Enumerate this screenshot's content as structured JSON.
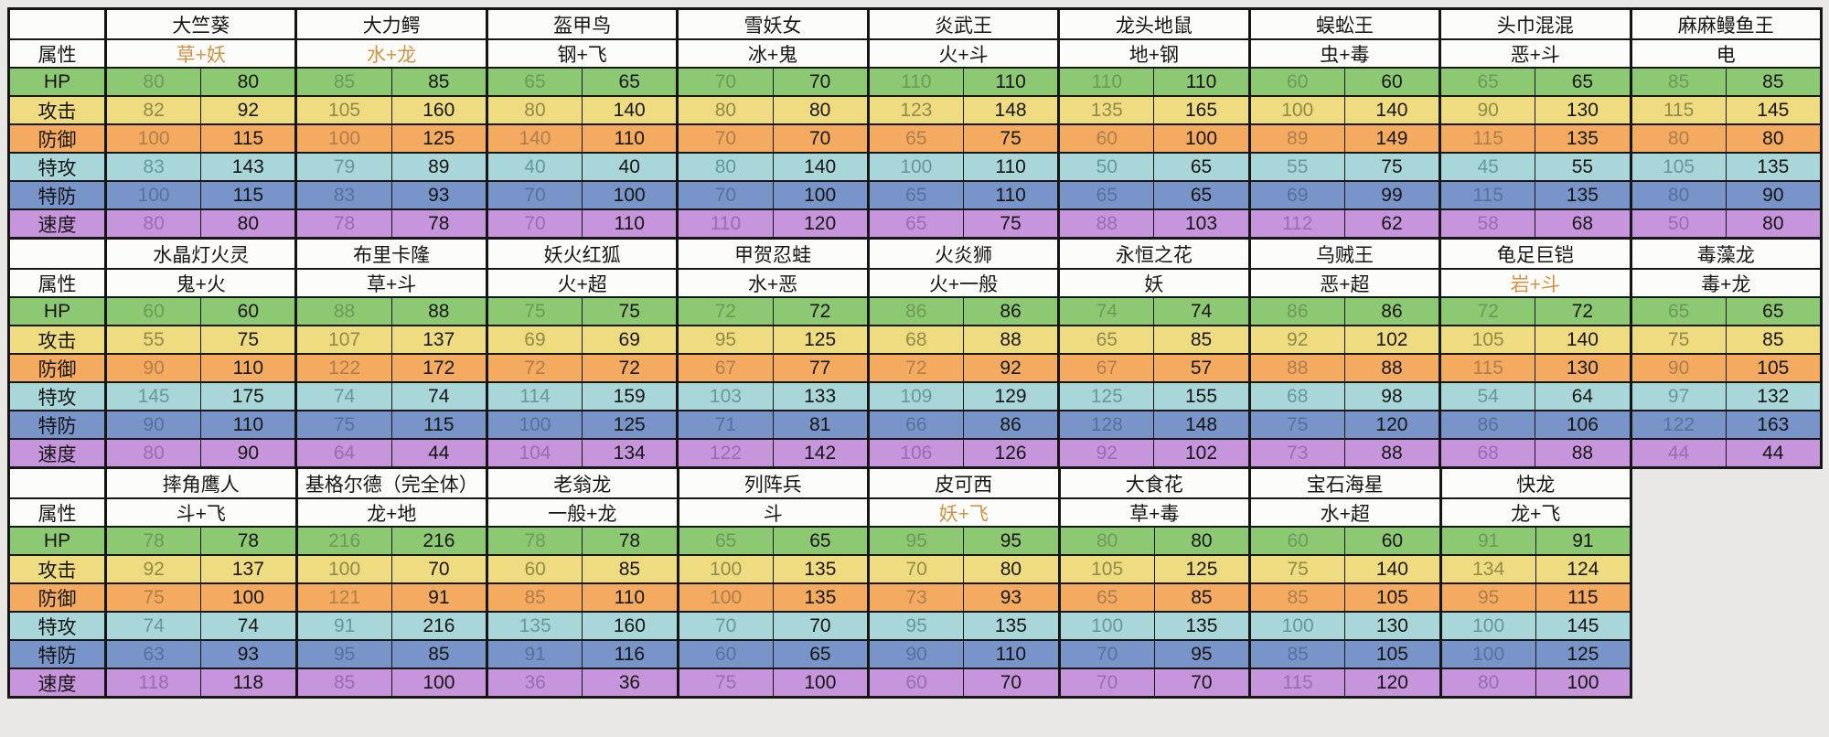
{
  "table": {
    "attribute_label": "属性",
    "stat_order": [
      "hp",
      "atk",
      "def",
      "spa",
      "spd",
      "spe"
    ],
    "stat_labels": {
      "hp": "HP",
      "atk": "攻击",
      "def": "防御",
      "spa": "特攻",
      "spd": "特防",
      "spe": "速度"
    },
    "colors": {
      "page_background": "#e9e8e5",
      "table_background": "#fcfcfa",
      "border": "#161616",
      "text": "#161616",
      "type_highlight": "#d09245",
      "rows": {
        "hp": {
          "band": "#8dc873",
          "muted": "#6e9a58"
        },
        "atk": {
          "band": "#f0dc80",
          "muted": "#8f8b48"
        },
        "def": {
          "band": "#f5ab5f",
          "muted": "#ae7e4d"
        },
        "spa": {
          "band": "#a9d6d8",
          "muted": "#649a9e"
        },
        "spd": {
          "band": "#7894c9",
          "muted": "#56719f"
        },
        "spe": {
          "band": "#c795dc",
          "muted": "#996cb4"
        }
      }
    },
    "blocks": [
      {
        "pokemon": [
          {
            "name": "大竺葵",
            "type": "草+妖",
            "type_highlight": true,
            "stats": {
              "hp": [
                80,
                80
              ],
              "atk": [
                82,
                92
              ],
              "def": [
                100,
                115
              ],
              "spa": [
                83,
                143
              ],
              "spd": [
                100,
                115
              ],
              "spe": [
                80,
                80
              ]
            }
          },
          {
            "name": "大力鳄",
            "type": "水+龙",
            "type_highlight": true,
            "stats": {
              "hp": [
                85,
                85
              ],
              "atk": [
                105,
                160
              ],
              "def": [
                100,
                125
              ],
              "spa": [
                79,
                89
              ],
              "spd": [
                83,
                93
              ],
              "spe": [
                78,
                78
              ]
            }
          },
          {
            "name": "盔甲鸟",
            "type": "钢+飞",
            "type_highlight": false,
            "stats": {
              "hp": [
                65,
                65
              ],
              "atk": [
                80,
                140
              ],
              "def": [
                140,
                110
              ],
              "spa": [
                40,
                40
              ],
              "spd": [
                70,
                100
              ],
              "spe": [
                70,
                110
              ]
            }
          },
          {
            "name": "雪妖女",
            "type": "冰+鬼",
            "type_highlight": false,
            "stats": {
              "hp": [
                70,
                70
              ],
              "atk": [
                80,
                80
              ],
              "def": [
                70,
                70
              ],
              "spa": [
                80,
                140
              ],
              "spd": [
                70,
                100
              ],
              "spe": [
                110,
                120
              ]
            }
          },
          {
            "name": "炎武王",
            "type": "火+斗",
            "type_highlight": false,
            "stats": {
              "hp": [
                110,
                110
              ],
              "atk": [
                123,
                148
              ],
              "def": [
                65,
                75
              ],
              "spa": [
                100,
                110
              ],
              "spd": [
                65,
                110
              ],
              "spe": [
                65,
                75
              ]
            }
          },
          {
            "name": "龙头地鼠",
            "type": "地+钢",
            "type_highlight": false,
            "stats": {
              "hp": [
                110,
                110
              ],
              "atk": [
                135,
                165
              ],
              "def": [
                60,
                100
              ],
              "spa": [
                50,
                65
              ],
              "spd": [
                65,
                65
              ],
              "spe": [
                88,
                103
              ]
            }
          },
          {
            "name": "蜈蚣王",
            "type": "虫+毒",
            "type_highlight": false,
            "stats": {
              "hp": [
                60,
                60
              ],
              "atk": [
                100,
                140
              ],
              "def": [
                89,
                149
              ],
              "spa": [
                55,
                75
              ],
              "spd": [
                69,
                99
              ],
              "spe": [
                112,
                62
              ]
            }
          },
          {
            "name": "头巾混混",
            "type": "恶+斗",
            "type_highlight": false,
            "stats": {
              "hp": [
                65,
                65
              ],
              "atk": [
                90,
                130
              ],
              "def": [
                115,
                135
              ],
              "spa": [
                45,
                55
              ],
              "spd": [
                115,
                135
              ],
              "spe": [
                58,
                68
              ]
            }
          },
          {
            "name": "麻麻鳗鱼王",
            "type": "电",
            "type_highlight": false,
            "stats": {
              "hp": [
                85,
                85
              ],
              "atk": [
                115,
                145
              ],
              "def": [
                80,
                80
              ],
              "spa": [
                105,
                135
              ],
              "spd": [
                80,
                90
              ],
              "spe": [
                50,
                80
              ]
            }
          }
        ]
      },
      {
        "pokemon": [
          {
            "name": "水晶灯火灵",
            "type": "鬼+火",
            "type_highlight": false,
            "stats": {
              "hp": [
                60,
                60
              ],
              "atk": [
                55,
                75
              ],
              "def": [
                90,
                110
              ],
              "spa": [
                145,
                175
              ],
              "spd": [
                90,
                110
              ],
              "spe": [
                80,
                90
              ]
            }
          },
          {
            "name": "布里卡隆",
            "type": "草+斗",
            "type_highlight": false,
            "stats": {
              "hp": [
                88,
                88
              ],
              "atk": [
                107,
                137
              ],
              "def": [
                122,
                172
              ],
              "spa": [
                74,
                74
              ],
              "spd": [
                75,
                115
              ],
              "spe": [
                64,
                44
              ]
            }
          },
          {
            "name": "妖火红狐",
            "type": "火+超",
            "type_highlight": false,
            "stats": {
              "hp": [
                75,
                75
              ],
              "atk": [
                69,
                69
              ],
              "def": [
                72,
                72
              ],
              "spa": [
                114,
                159
              ],
              "spd": [
                100,
                125
              ],
              "spe": [
                104,
                134
              ]
            }
          },
          {
            "name": "甲贺忍蛙",
            "type": "水+恶",
            "type_highlight": false,
            "stats": {
              "hp": [
                72,
                72
              ],
              "atk": [
                95,
                125
              ],
              "def": [
                67,
                77
              ],
              "spa": [
                103,
                133
              ],
              "spd": [
                71,
                81
              ],
              "spe": [
                122,
                142
              ]
            }
          },
          {
            "name": "火炎狮",
            "type": "火+一般",
            "type_highlight": false,
            "stats": {
              "hp": [
                86,
                86
              ],
              "atk": [
                68,
                88
              ],
              "def": [
                72,
                92
              ],
              "spa": [
                109,
                129
              ],
              "spd": [
                66,
                86
              ],
              "spe": [
                106,
                126
              ]
            }
          },
          {
            "name": "永恒之花",
            "type": "妖",
            "type_highlight": false,
            "stats": {
              "hp": [
                74,
                74
              ],
              "atk": [
                65,
                85
              ],
              "def": [
                67,
                57
              ],
              "spa": [
                125,
                155
              ],
              "spd": [
                128,
                148
              ],
              "spe": [
                92,
                102
              ]
            }
          },
          {
            "name": "乌贼王",
            "type": "恶+超",
            "type_highlight": false,
            "stats": {
              "hp": [
                86,
                86
              ],
              "atk": [
                92,
                102
              ],
              "def": [
                88,
                88
              ],
              "spa": [
                68,
                98
              ],
              "spd": [
                75,
                120
              ],
              "spe": [
                73,
                88
              ]
            }
          },
          {
            "name": "龟足巨铠",
            "type": "岩+斗",
            "type_highlight": true,
            "stats": {
              "hp": [
                72,
                72
              ],
              "atk": [
                105,
                140
              ],
              "def": [
                115,
                130
              ],
              "spa": [
                54,
                64
              ],
              "spd": [
                86,
                106
              ],
              "spe": [
                68,
                88
              ]
            }
          },
          {
            "name": "毒藻龙",
            "type": "毒+龙",
            "type_highlight": false,
            "stats": {
              "hp": [
                65,
                65
              ],
              "atk": [
                75,
                85
              ],
              "def": [
                90,
                105
              ],
              "spa": [
                97,
                132
              ],
              "spd": [
                122,
                163
              ],
              "spe": [
                44,
                44
              ]
            }
          }
        ]
      },
      {
        "pokemon": [
          {
            "name": "摔角鹰人",
            "type": "斗+飞",
            "type_highlight": false,
            "stats": {
              "hp": [
                78,
                78
              ],
              "atk": [
                92,
                137
              ],
              "def": [
                75,
                100
              ],
              "spa": [
                74,
                74
              ],
              "spd": [
                63,
                93
              ],
              "spe": [
                118,
                118
              ]
            }
          },
          {
            "name": "基格尔德（完全体）",
            "type": "龙+地",
            "type_highlight": false,
            "stats": {
              "hp": [
                216,
                216
              ],
              "atk": [
                100,
                70
              ],
              "def": [
                121,
                91
              ],
              "spa": [
                91,
                216
              ],
              "spd": [
                95,
                85
              ],
              "spe": [
                85,
                100
              ]
            }
          },
          {
            "name": "老翁龙",
            "type": "一般+龙",
            "type_highlight": false,
            "stats": {
              "hp": [
                78,
                78
              ],
              "atk": [
                60,
                85
              ],
              "def": [
                85,
                110
              ],
              "spa": [
                135,
                160
              ],
              "spd": [
                91,
                116
              ],
              "spe": [
                36,
                36
              ]
            }
          },
          {
            "name": "列阵兵",
            "type": "斗",
            "type_highlight": false,
            "stats": {
              "hp": [
                65,
                65
              ],
              "atk": [
                100,
                135
              ],
              "def": [
                100,
                135
              ],
              "spa": [
                70,
                70
              ],
              "spd": [
                60,
                65
              ],
              "spe": [
                75,
                100
              ]
            }
          },
          {
            "name": "皮可西",
            "type": "妖+飞",
            "type_highlight": true,
            "stats": {
              "hp": [
                95,
                95
              ],
              "atk": [
                70,
                80
              ],
              "def": [
                73,
                93
              ],
              "spa": [
                95,
                135
              ],
              "spd": [
                90,
                110
              ],
              "spe": [
                60,
                70
              ]
            }
          },
          {
            "name": "大食花",
            "type": "草+毒",
            "type_highlight": false,
            "stats": {
              "hp": [
                80,
                80
              ],
              "atk": [
                105,
                125
              ],
              "def": [
                65,
                85
              ],
              "spa": [
                100,
                135
              ],
              "spd": [
                70,
                95
              ],
              "spe": [
                70,
                70
              ]
            }
          },
          {
            "name": "宝石海星",
            "type": "水+超",
            "type_highlight": false,
            "stats": {
              "hp": [
                60,
                60
              ],
              "atk": [
                75,
                140
              ],
              "def": [
                85,
                105
              ],
              "spa": [
                100,
                130
              ],
              "spd": [
                85,
                105
              ],
              "spe": [
                115,
                120
              ]
            }
          },
          {
            "name": "快龙",
            "type": "龙+飞",
            "type_highlight": false,
            "stats": {
              "hp": [
                91,
                91
              ],
              "atk": [
                134,
                124
              ],
              "def": [
                95,
                115
              ],
              "spa": [
                100,
                145
              ],
              "spd": [
                100,
                125
              ],
              "spe": [
                80,
                100
              ]
            }
          }
        ]
      }
    ]
  }
}
